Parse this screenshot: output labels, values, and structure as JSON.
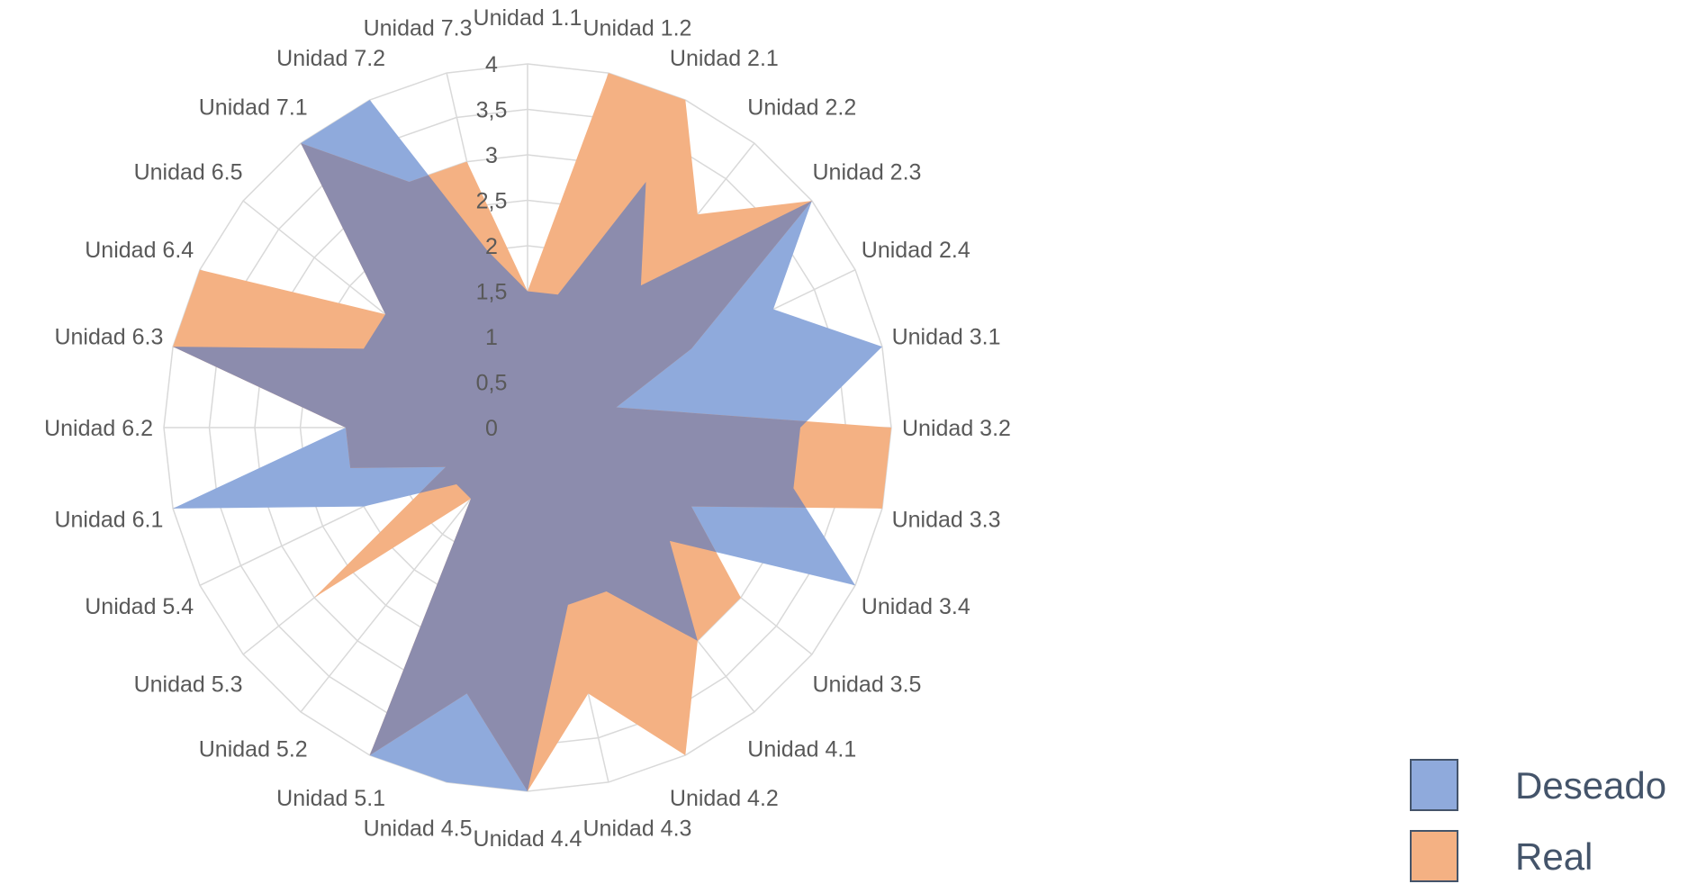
{
  "chart_data": {
    "type": "radar",
    "categories": [
      "Unidad 1.1",
      "Unidad 1.2",
      "Unidad 2.1",
      "Unidad 2.2",
      "Unidad 2.3",
      "Unidad 2.4",
      "Unidad 3.1",
      "Unidad 3.2",
      "Unidad 3.3",
      "Unidad 3.4",
      "Unidad 3.5",
      "Unidad 4.1",
      "Unidad 4.2",
      "Unidad 4.3",
      "Unidad 4.4",
      "Unidad 4.5",
      "Unidad 5.1",
      "Unidad 5.2",
      "Unidad 5.3",
      "Unidad 5.4",
      "Unidad 6.1",
      "Unidad 6.2",
      "Unidad 6.3",
      "Unidad 6.4",
      "Unidad 6.5",
      "Unidad 7.1",
      "Unidad 7.2",
      "Unidad 7.3"
    ],
    "series": [
      {
        "name": "Deseado",
        "color": "#8faadc",
        "values": [
          1.5,
          1.5,
          3,
          2,
          4,
          3,
          4,
          3,
          3,
          4,
          2,
          3,
          2,
          2,
          4,
          4,
          4,
          1,
          1,
          2,
          4,
          2,
          4,
          2,
          2,
          4,
          4,
          2
        ]
      },
      {
        "name": "Real",
        "color": "#f4b183",
        "values": [
          1.5,
          4,
          4,
          3,
          4,
          2,
          1,
          4,
          4,
          2,
          3,
          3,
          4,
          3,
          4,
          3,
          4,
          1,
          3,
          1,
          2,
          2,
          4,
          4,
          2,
          4,
          3,
          3
        ]
      }
    ],
    "overlap_color": "#8c8cad",
    "rlim": [
      0,
      4
    ],
    "tick_labels": [
      "0",
      "0,5",
      "1",
      "1,5",
      "2",
      "2,5",
      "3",
      "3,5",
      "4"
    ],
    "legend_position": "bottom-right"
  },
  "legend": {
    "items": [
      {
        "label": "Deseado",
        "color": "#8faadc"
      },
      {
        "label": "Real",
        "color": "#f4b183"
      }
    ]
  }
}
